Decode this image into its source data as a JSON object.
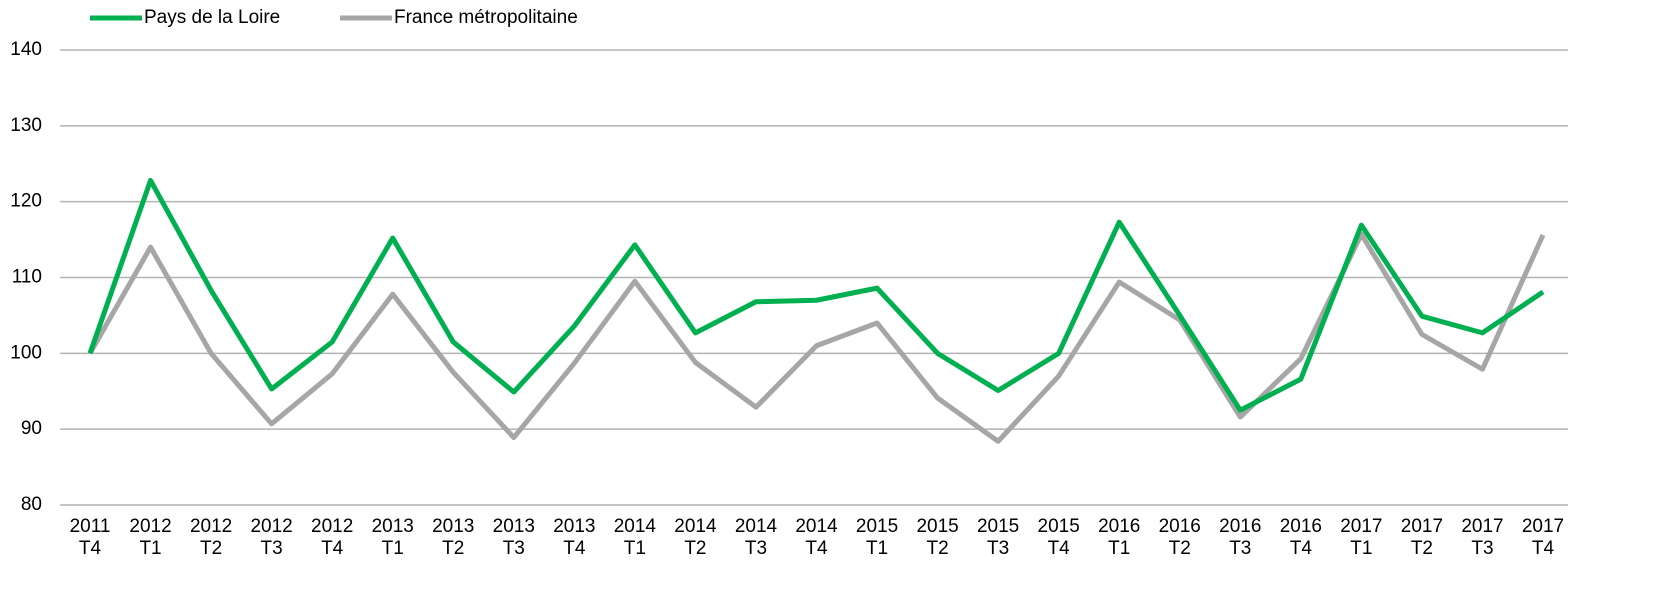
{
  "chart_data": {
    "type": "line",
    "categories": [
      "2011 T4",
      "2012 T1",
      "2012 T2",
      "2012 T3",
      "2012 T4",
      "2013 T1",
      "2013 T2",
      "2013 T3",
      "2013 T4",
      "2014 T1",
      "2014 T2",
      "2014 T3",
      "2014 T4",
      "2015 T1",
      "2015 T2",
      "2015 T3",
      "2015 T4",
      "2016 T1",
      "2016 T2",
      "2016 T3",
      "2016 T4",
      "2017 T1",
      "2017 T2",
      "2017 T3",
      "2017 T4"
    ],
    "series": [
      {
        "name": "Pays de la Loire",
        "color": "#00b050",
        "values": [
          100,
          122.8,
          108.3,
          95.3,
          101.5,
          115.2,
          101.5,
          94.9,
          103.6,
          114.3,
          102.7,
          106.8,
          107.0,
          108.6,
          100.0,
          95.1,
          100,
          117.3,
          105.0,
          92.5,
          96.6,
          116.9,
          104.9,
          102.7,
          108.1
        ]
      },
      {
        "name": "France métropolitaine",
        "color": "#a6a6a6",
        "values": [
          100,
          114.0,
          100,
          90.7,
          97.3,
          107.8,
          97.5,
          88.9,
          98.7,
          109.5,
          98.8,
          92.9,
          101.0,
          104.0,
          94.1,
          88.4,
          97.0,
          109.4,
          104.4,
          91.6,
          99.3,
          115.7,
          102.5,
          97.9,
          115.6
        ]
      }
    ],
    "ylim": [
      80,
      140
    ],
    "yticks": [
      80,
      90,
      100,
      110,
      120,
      130,
      140
    ],
    "grid": true,
    "legend": "top-left"
  }
}
